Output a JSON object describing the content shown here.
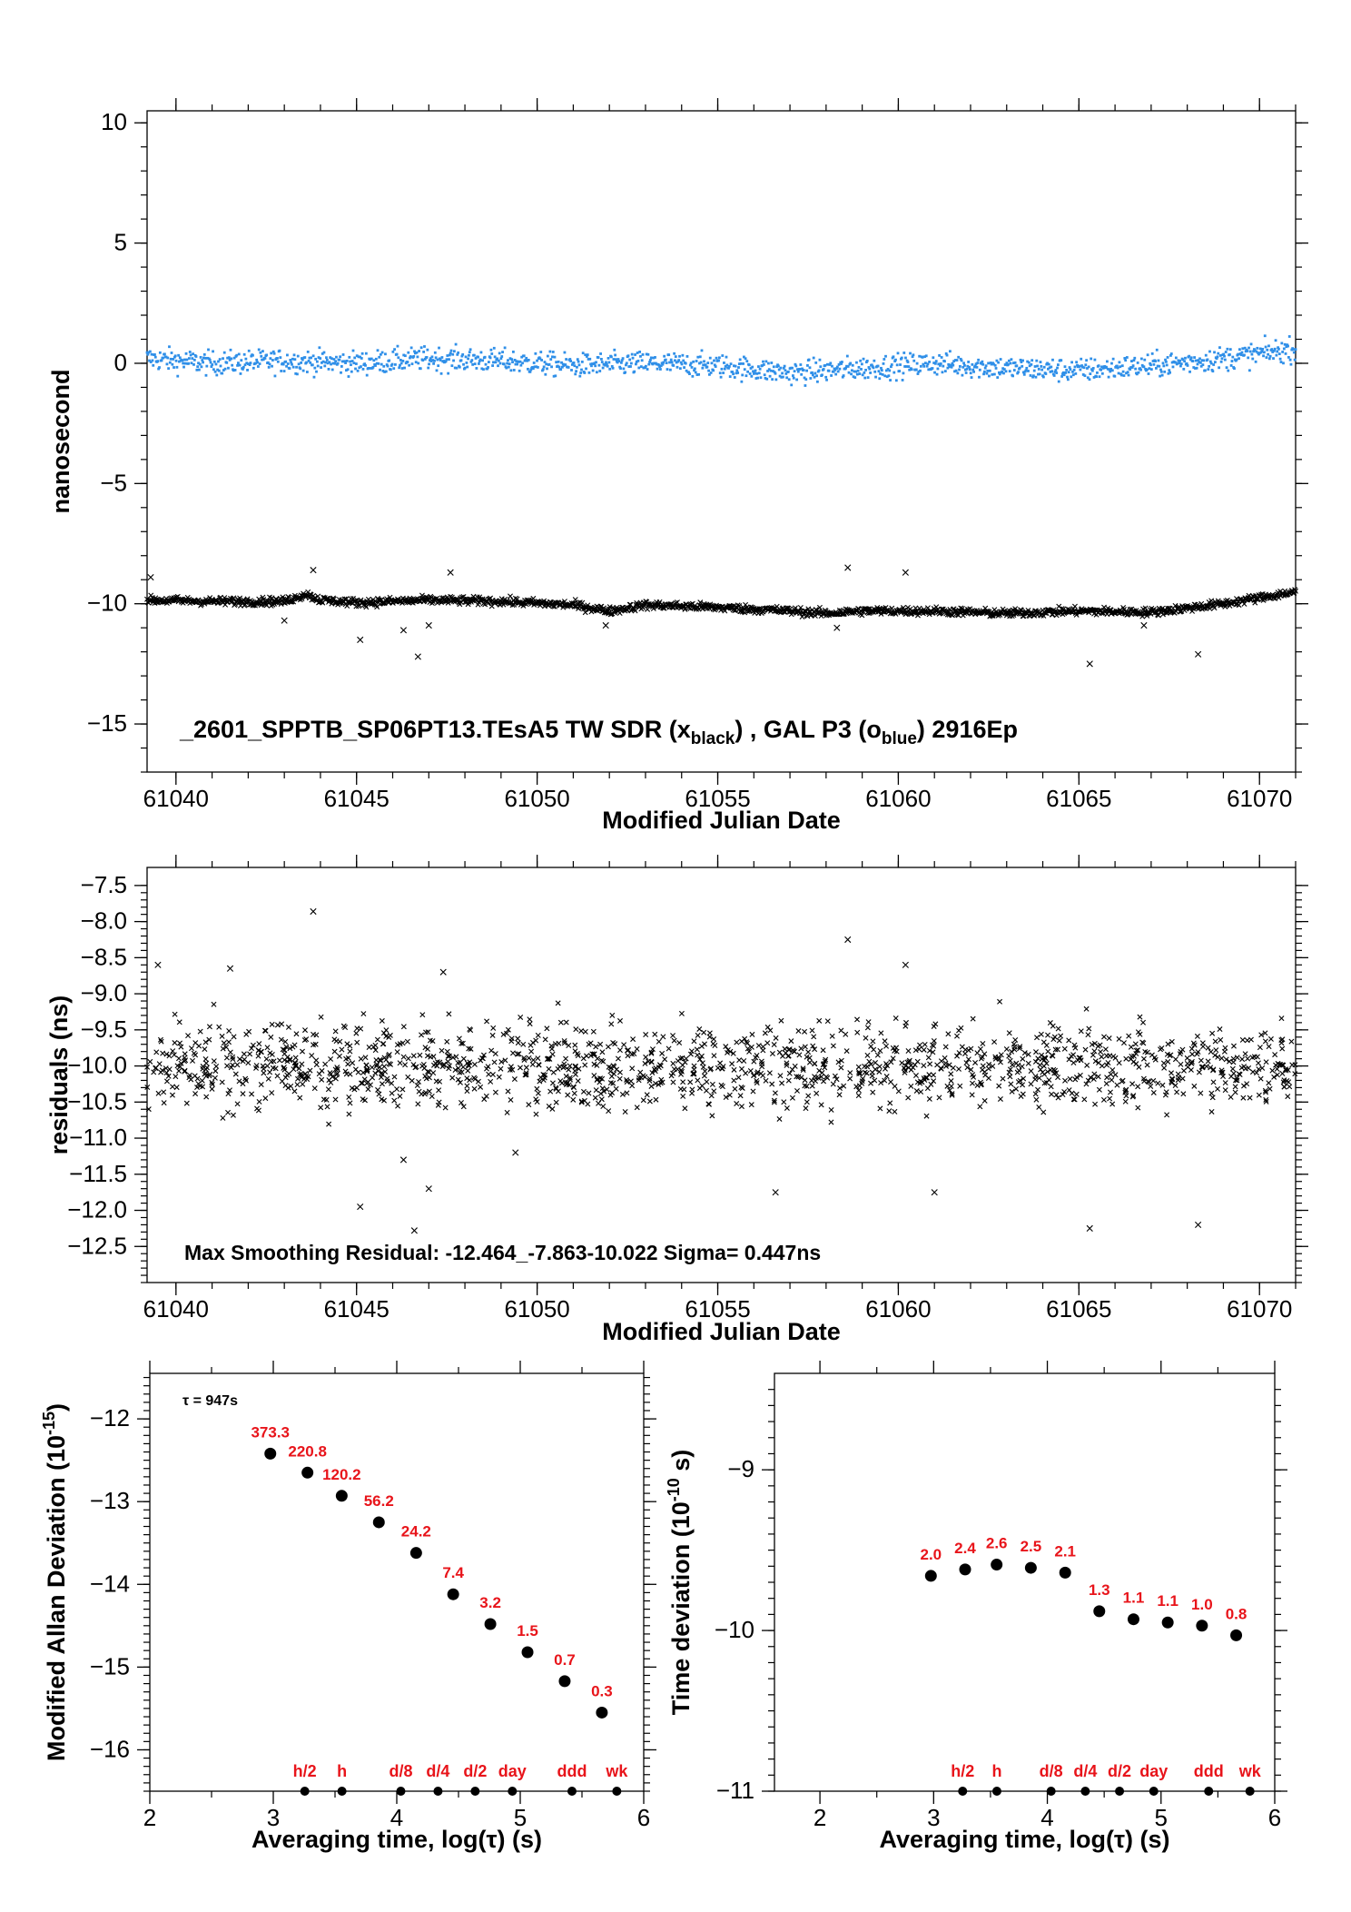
{
  "chart_data": [
    {
      "type": "scatter",
      "xlabel": "Modified Julian Date",
      "ylabel": "nanosecond",
      "xlim": [
        61039.2,
        61071.0
      ],
      "ylim": [
        -17,
        10.5
      ],
      "xticks": [
        "61040",
        "61045",
        "61050",
        "61055",
        "61060",
        "61065",
        "61070"
      ],
      "yticks": [
        "10",
        "5",
        "0",
        "−5",
        "−10",
        "−15"
      ],
      "grid": false,
      "annotation": {
        "id": "_2601_SPPTB_SP06PT13.TEsA5",
        "tw": "TW SDR (x",
        "tw_sub": "black",
        "mid": ") ,  GAL P3 (o",
        "gal_sub": "blue",
        "tail": ")  2916Ep"
      },
      "series": [
        {
          "marker": "dot",
          "color": "#2f8fe8",
          "x": [
            61039.2,
            61041,
            61043,
            61045,
            61047,
            61049,
            61051,
            61053,
            61055,
            61057,
            61059,
            61061,
            61063,
            61065,
            61067,
            61069,
            61071
          ],
          "y": [
            0.2,
            0.0,
            0.1,
            0.0,
            0.2,
            0.1,
            -0.1,
            0.0,
            -0.1,
            -0.4,
            -0.2,
            0.0,
            -0.2,
            -0.3,
            -0.1,
            0.2,
            0.6
          ],
          "spread": 0.35,
          "n": 1500
        },
        {
          "marker": "x",
          "color": "#000000",
          "x": [
            61039.2,
            61041,
            61043,
            61043.6,
            61044,
            61045,
            61047,
            61049,
            61051,
            61052,
            61053,
            61055,
            61057,
            61058,
            61059,
            61061,
            61063,
            61065,
            61067,
            61069,
            61071
          ],
          "y": [
            -9.85,
            -9.9,
            -9.9,
            -9.6,
            -9.85,
            -9.95,
            -9.85,
            -9.9,
            -10.05,
            -10.3,
            -10.05,
            -10.15,
            -10.3,
            -10.4,
            -10.3,
            -10.3,
            -10.4,
            -10.3,
            -10.35,
            -10.0,
            -9.5
          ],
          "spread": 0.12,
          "n": 1500,
          "outliers": [
            [
              61039.3,
              -8.9
            ],
            [
              61043.0,
              -10.7
            ],
            [
              61043.8,
              -8.6
            ],
            [
              61045.1,
              -11.5
            ],
            [
              61046.3,
              -11.1
            ],
            [
              61046.7,
              -12.2
            ],
            [
              61047.0,
              -10.9
            ],
            [
              61047.6,
              -8.7
            ],
            [
              61051.9,
              -10.9
            ],
            [
              61058.3,
              -11.0
            ],
            [
              61058.6,
              -8.5
            ],
            [
              61060.2,
              -8.7
            ],
            [
              61065.3,
              -12.5
            ],
            [
              61065.9,
              -10.4
            ],
            [
              61066.8,
              -10.9
            ],
            [
              61068.3,
              -12.1
            ]
          ]
        }
      ]
    },
    {
      "type": "scatter",
      "xlabel": "Modified Julian Date",
      "ylabel": "residuals (ns)",
      "xlim": [
        61039.2,
        61071.0
      ],
      "ylim": [
        -13.0,
        -7.25
      ],
      "xticks": [
        "61040",
        "61045",
        "61050",
        "61055",
        "61060",
        "61065",
        "61070"
      ],
      "yticks": [
        "−7.5",
        "−8.0",
        "−8.5",
        "−9.0",
        "−9.5",
        "−10.0",
        "−10.5",
        "−11.0",
        "−11.5",
        "−12.0",
        "−12.5"
      ],
      "grid": false,
      "annotation": "Max Smoothing Residual: -12.464_-7.863-10.022  Sigma= 0.447ns",
      "series": [
        {
          "marker": "x",
          "color": "#000000",
          "center": -10.0,
          "spread": 0.42,
          "n": 1500,
          "outliers": [
            [
              61039.5,
              -8.6
            ],
            [
              61041.5,
              -8.65
            ],
            [
              61043.8,
              -7.86
            ],
            [
              61045.1,
              -11.95
            ],
            [
              61046.3,
              -11.3
            ],
            [
              61046.6,
              -12.28
            ],
            [
              61047.0,
              -11.7
            ],
            [
              61047.4,
              -8.7
            ],
            [
              61049.4,
              -11.2
            ],
            [
              61056.6,
              -11.75
            ],
            [
              61058.6,
              -8.25
            ],
            [
              61060.2,
              -8.6
            ],
            [
              61061.0,
              -11.75
            ],
            [
              61065.3,
              -12.25
            ],
            [
              61068.3,
              -12.2
            ]
          ]
        }
      ]
    },
    {
      "type": "scatter",
      "xlabel": "Averaging time, log(τ) (s)",
      "ylabel": "Modified Allan Deviation (10",
      "ylabel_sup": "-15",
      "ylabel_tail": ")",
      "xlim": [
        2,
        6
      ],
      "ylim": [
        -16.5,
        -11.45
      ],
      "xticks": [
        "2",
        "3",
        "4",
        "5",
        "6"
      ],
      "yticks": [
        "−12",
        "−13",
        "−14",
        "−15",
        "−16"
      ],
      "tau_note": "τ = 947s",
      "x": [
        2.976,
        3.277,
        3.554,
        3.855,
        4.157,
        4.457,
        4.758,
        5.059,
        5.36,
        5.661
      ],
      "y": [
        -12.42,
        -12.65,
        -12.93,
        -13.25,
        -13.62,
        -14.12,
        -14.48,
        -14.82,
        -15.17,
        -15.55
      ],
      "labels": [
        "373.3",
        "220.8",
        "120.2",
        "56.2",
        "24.2",
        "7.4",
        "3.2",
        "1.5",
        "0.7",
        "0.3"
      ],
      "markers_x": [
        3.255,
        3.556,
        4.033,
        4.334,
        4.635,
        4.936,
        5.419,
        5.782
      ],
      "markers": [
        "h/2",
        "h",
        "d/8",
        "d/4",
        "d/2",
        "day",
        "ddd",
        "wk"
      ]
    },
    {
      "type": "scatter",
      "xlabel": "Averaging time, log(τ) (s)",
      "ylabel": "Time deviation (10",
      "ylabel_sup": "-10",
      "ylabel_tail": " s)",
      "xlim": [
        1.6,
        6.0
      ],
      "ylim": [
        -11.0,
        -8.4
      ],
      "xticks": [
        "2",
        "3",
        "4",
        "5",
        "6"
      ],
      "yticks": [
        "−9",
        "−10",
        "−11"
      ],
      "x": [
        2.976,
        3.277,
        3.554,
        3.855,
        4.157,
        4.457,
        4.758,
        5.059,
        5.36,
        5.661
      ],
      "y": [
        -9.66,
        -9.62,
        -9.59,
        -9.61,
        -9.64,
        -9.88,
        -9.93,
        -9.95,
        -9.97,
        -10.03
      ],
      "labels": [
        "2.0",
        "2.4",
        "2.6",
        "2.5",
        "2.1",
        "1.3",
        "1.1",
        "1.1",
        "1.0",
        "0.8"
      ],
      "markers_x": [
        3.255,
        3.556,
        4.033,
        4.334,
        4.635,
        4.936,
        5.419,
        5.782
      ],
      "markers": [
        "h/2",
        "h",
        "d/8",
        "d/4",
        "d/2",
        "day",
        "ddd",
        "wk"
      ]
    }
  ]
}
